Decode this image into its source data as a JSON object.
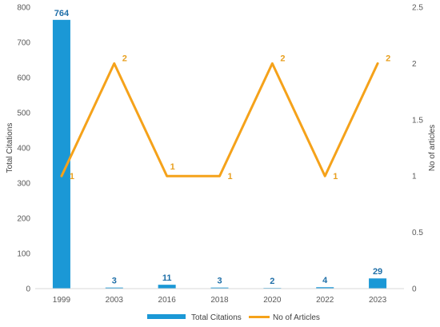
{
  "chart_data": {
    "type": "bar",
    "categories": [
      "1999",
      "2003",
      "2016",
      "2018",
      "2020",
      "2022",
      "2023"
    ],
    "series": [
      {
        "name": "Total Citations",
        "type": "bar",
        "axis": "left",
        "values": [
          764,
          3,
          11,
          3,
          2,
          4,
          29
        ],
        "data_labels": [
          "764",
          "3",
          "11",
          "3",
          "2",
          "4",
          "29"
        ]
      },
      {
        "name": "No of Articles",
        "type": "line",
        "axis": "right",
        "values": [
          1,
          2,
          1,
          1,
          2,
          1,
          2
        ],
        "data_labels": [
          "1",
          "2",
          "1",
          "1",
          "2",
          "1",
          "2"
        ]
      }
    ],
    "ylabel": "Total Citations",
    "ylabel_right": "No of articles",
    "ylim": [
      0,
      800
    ],
    "ylim_right": [
      0,
      2.5
    ],
    "yticks": [
      "0",
      "100",
      "200",
      "300",
      "400",
      "500",
      "600",
      "700",
      "800"
    ],
    "yticks_right": [
      "0",
      "0.5",
      "1",
      "1.5",
      "2",
      "2.5"
    ],
    "grid": false,
    "legend_position": "bottom",
    "colors": {
      "bar": "#1b98d6",
      "line": "#f5a21a",
      "bar_label": "#1f6fa8",
      "line_label": "#e8a020"
    }
  }
}
